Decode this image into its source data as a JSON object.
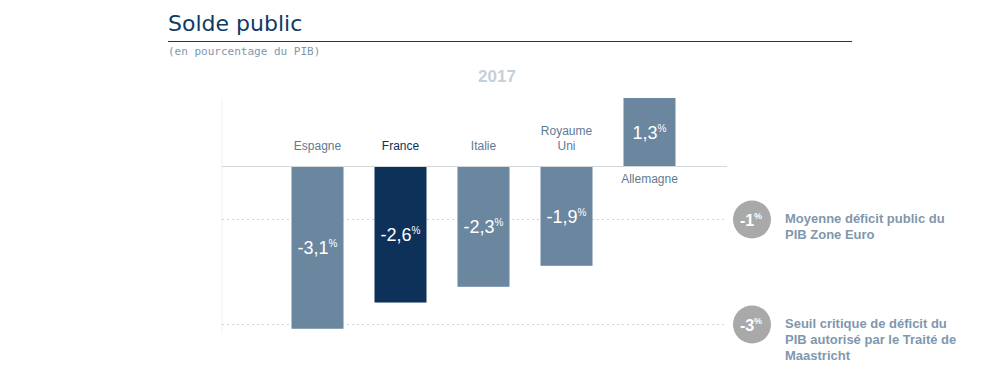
{
  "chart_data": {
    "type": "bar",
    "title": "Solde public",
    "subtitle": "(en pourcentage du PIB)",
    "period": "2017",
    "categories": [
      "Espagne",
      "France",
      "Italie",
      "Royaume Uni",
      "Allemagne"
    ],
    "values": [
      -3.1,
      -2.6,
      -2.3,
      -1.9,
      1.3
    ],
    "value_labels": [
      "-3,1%",
      "-2,6%",
      "-2,3%",
      "-1,9%",
      "1,3%"
    ],
    "colors": [
      "#6b869f",
      "#0d3158",
      "#6b869f",
      "#6b869f",
      "#6b869f"
    ],
    "ylim": [
      -3.2,
      1.3
    ],
    "tick_labels": false,
    "grid": false,
    "data_labels": true,
    "annotations": [
      {
        "value": -1,
        "label": "-1%",
        "text": "Moyenne déficit public du PIB Zone Euro"
      },
      {
        "value": -3,
        "label": "-3%",
        "text": "Seuil critique de déficit du PIB autorisé par le Traité de Maastricht"
      }
    ]
  }
}
